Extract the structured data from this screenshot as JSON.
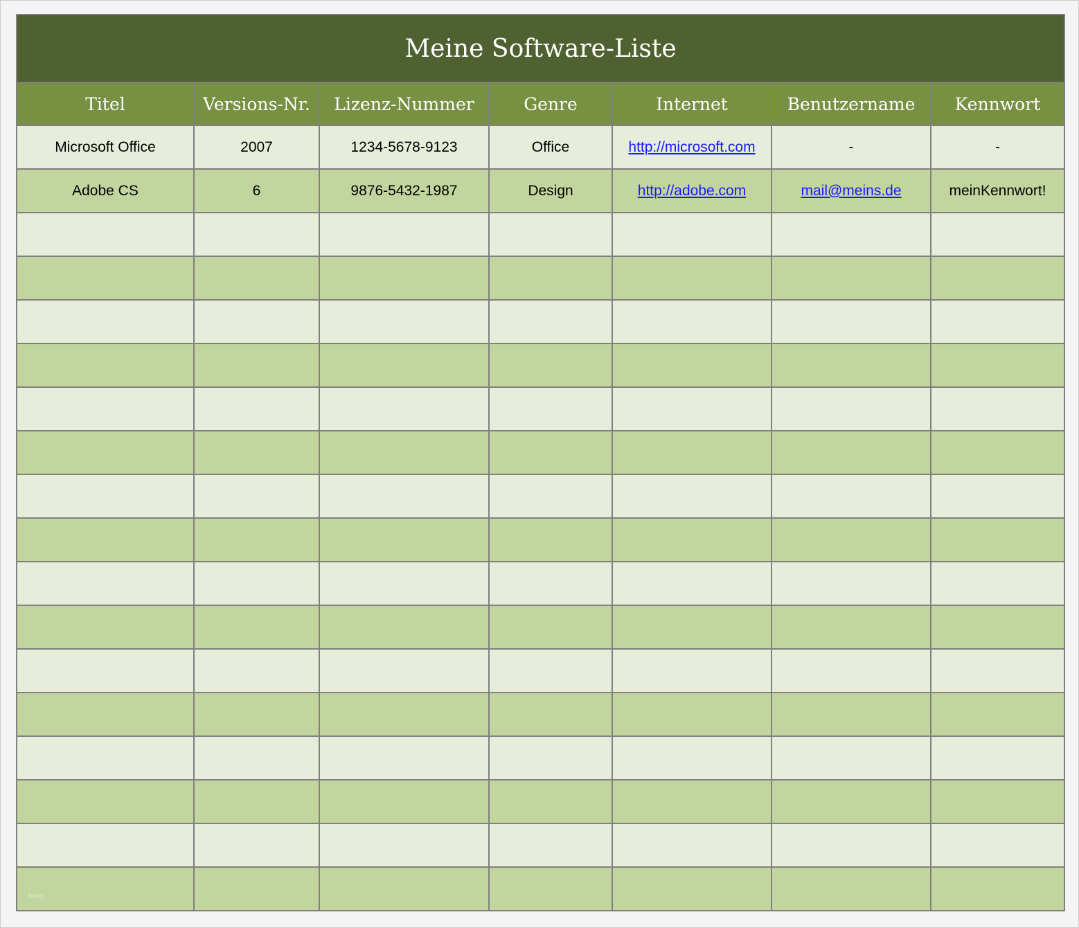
{
  "title": "Meine Software-Liste",
  "columns": [
    "Titel",
    "Versions-Nr.",
    "Lizenz-Nummer",
    "Genre",
    "Internet",
    "Benutzername",
    "Kennwort"
  ],
  "rows": [
    {
      "titel": "Microsoft Office",
      "version": "2007",
      "lizenz": "1234-5678-9123",
      "genre": "Office",
      "internet": "http://microsoft.com",
      "benutzer": "-",
      "kennwort": "-"
    },
    {
      "titel": "Adobe CS",
      "version": "6",
      "lizenz": "9876-5432-1987",
      "genre": "Design",
      "internet": "http://adobe.com",
      "benutzer": "mail@meins.de",
      "kennwort": "meinKennwort!"
    }
  ],
  "empty_row_count": 16,
  "watermark": "blog",
  "colors": {
    "title_bg": "#4f6130",
    "header_bg": "#789041",
    "row_light": "#e6eddb",
    "row_dark": "#c3d59e",
    "link": "#1a1aff"
  }
}
